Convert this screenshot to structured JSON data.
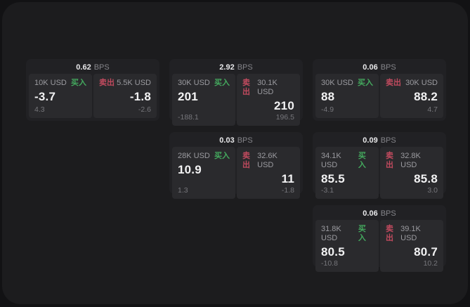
{
  "labels": {
    "bps_unit": "BPS",
    "buy": "买入",
    "sell": "卖出"
  },
  "colors": {
    "buy_green": "#44a95e",
    "sell_red": "#c04a5e",
    "page_background": "#1c1c1e",
    "card_background": "#212124",
    "panel_background": "#2a2a2d"
  },
  "cards": [
    {
      "bps": "0.62",
      "buy": {
        "size": "10K USD",
        "value": "-3.7",
        "delta": "4.3"
      },
      "sell": {
        "size": "5.5K USD",
        "value": "-1.8",
        "delta": "-2.6"
      }
    },
    {
      "bps": "2.92",
      "buy": {
        "size": "30K USD",
        "value": "201",
        "delta": "-188.1"
      },
      "sell": {
        "size": "30.1K USD",
        "value": "210",
        "delta": "196.5"
      }
    },
    {
      "bps": "0.06",
      "buy": {
        "size": "30K USD",
        "value": "88",
        "delta": "-4.9"
      },
      "sell": {
        "size": "30K USD",
        "value": "88.2",
        "delta": "4.7"
      }
    },
    {
      "bps": "0.03",
      "buy": {
        "size": "28K USD",
        "value": "10.9",
        "delta": "1.3"
      },
      "sell": {
        "size": "32.6K USD",
        "value": "11",
        "delta": "-1.8"
      }
    },
    {
      "bps": "0.09",
      "buy": {
        "size": "34.1K USD",
        "value": "85.5",
        "delta": "-3.1"
      },
      "sell": {
        "size": "32.8K USD",
        "value": "85.8",
        "delta": "3.0"
      }
    },
    {
      "bps": "0.06",
      "buy": {
        "size": "31.8K USD",
        "value": "80.5",
        "delta": "-10.8"
      },
      "sell": {
        "size": "39.1K USD",
        "value": "80.7",
        "delta": "10.2"
      }
    }
  ]
}
